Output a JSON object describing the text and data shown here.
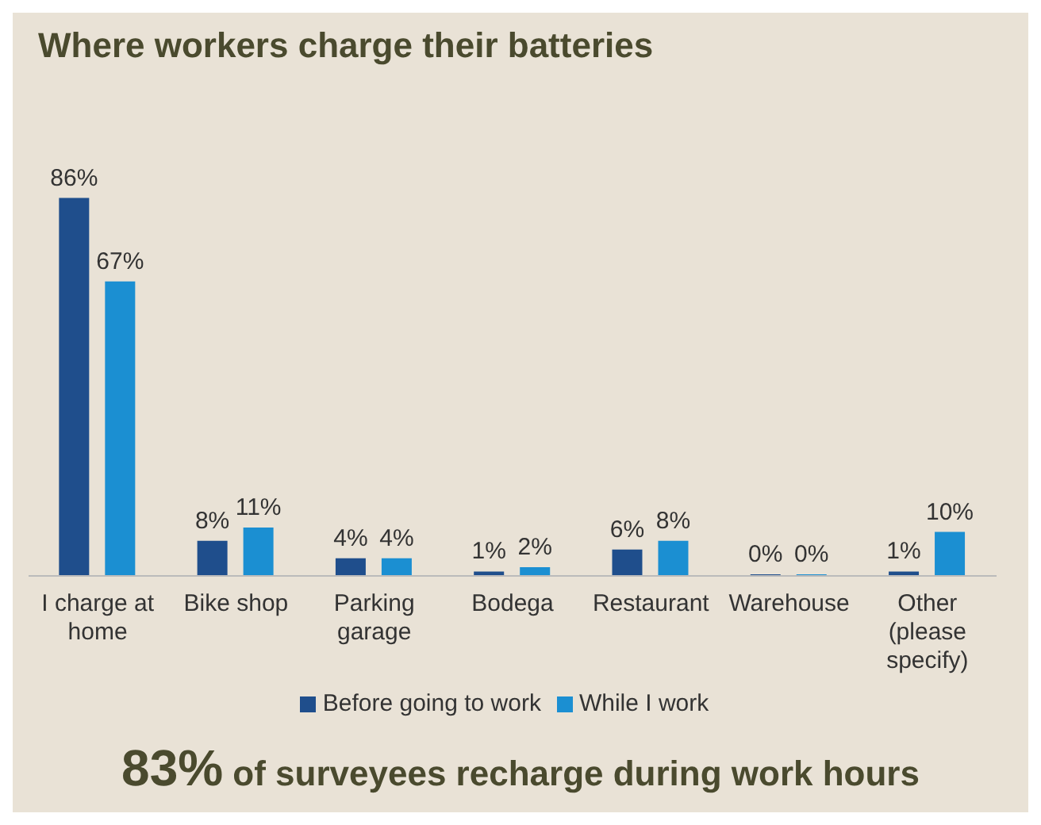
{
  "chart_data": {
    "type": "bar",
    "title": "Where workers charge their batteries",
    "categories": [
      "I charge at home",
      "Bike shop",
      "Parking garage",
      "Bodega",
      "Restaurant",
      "Warehouse",
      "Other (please specify)"
    ],
    "series": [
      {
        "name": "Before going to work",
        "color": "#1f4e8c",
        "values": [
          86,
          8,
          4,
          1,
          6,
          0,
          1
        ],
        "value_labels": [
          "86%",
          "8%",
          "4%",
          "1%",
          "6%",
          "0%",
          "1%"
        ]
      },
      {
        "name": "While I work",
        "color": "#1b8fd2",
        "values": [
          67,
          11,
          4,
          2,
          8,
          0,
          10
        ],
        "value_labels": [
          "67%",
          "11%",
          "4%",
          "2%",
          "8%",
          "0%",
          "10%"
        ]
      }
    ],
    "legend": "bottom",
    "annotations": [
      "83% of surveyees recharge during work hours"
    ]
  }
}
